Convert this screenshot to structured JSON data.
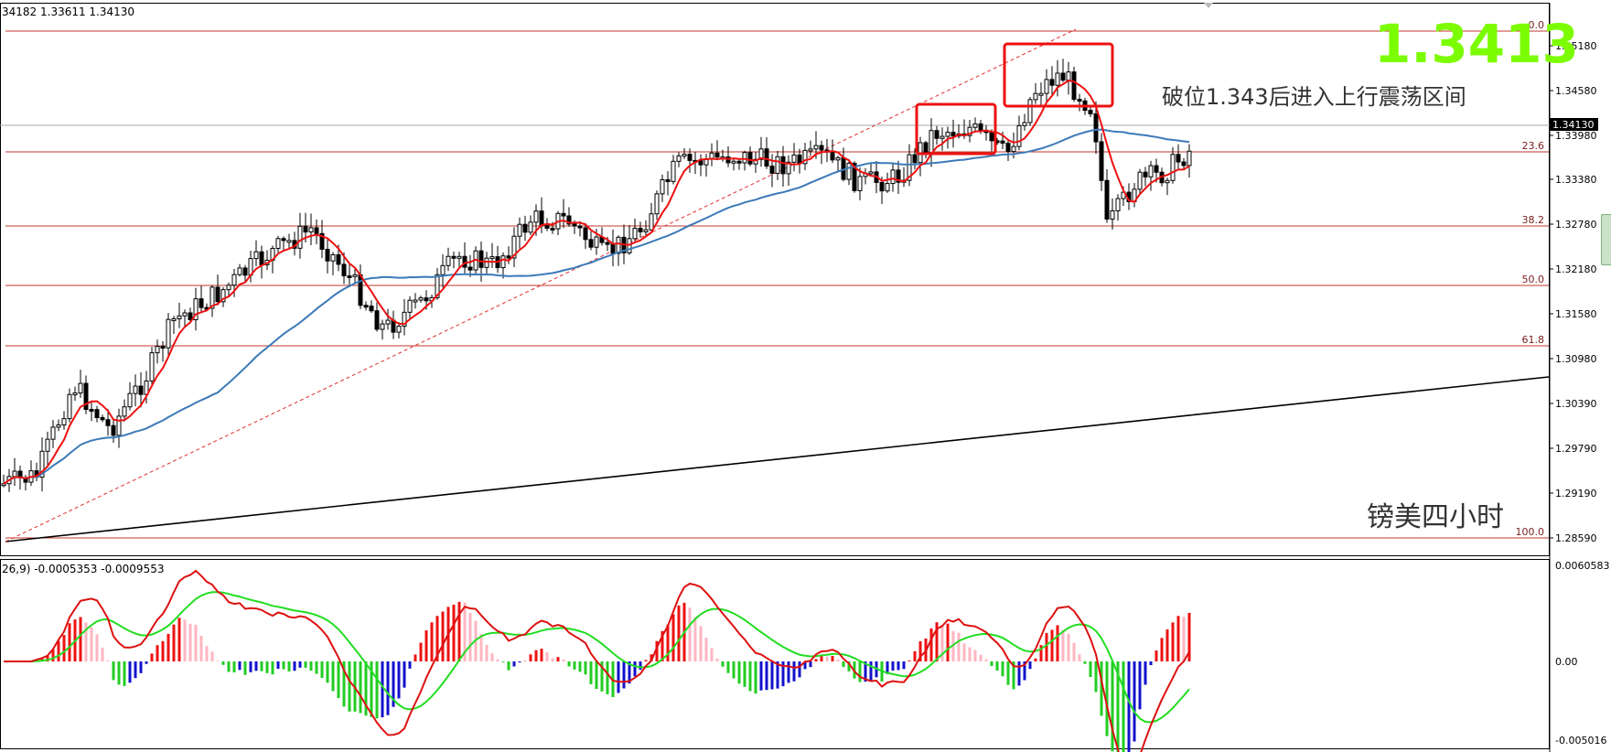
{
  "header": {
    "ohlc_text": "34182 1.33611 1.34130",
    "big_price": "1.3413",
    "note": "破位1.343后进入上行震荡区间",
    "subtitle": "镑美四小时"
  },
  "price_axis": {
    "labels": [
      "1.35180",
      "1.34580",
      "1.33980",
      "1.33380",
      "1.32780",
      "1.32180",
      "1.31580",
      "1.30980",
      "1.30390",
      "1.29790",
      "1.29190",
      "1.28590"
    ],
    "current": "1.34130"
  },
  "fibonacci": {
    "levels": [
      "0.0",
      "23.6",
      "38.2",
      "50.0",
      "61.8",
      "100.0"
    ]
  },
  "macd": {
    "header": "26,9) -0.0005353 -0.0009553",
    "labels": [
      "0.0060583",
      "0.00",
      "-0.005016"
    ]
  },
  "colors": {
    "fib_line": "#c0392b",
    "ma_fast": "#ee1111",
    "ma_slow": "#3d7ab8",
    "trend": "#000000",
    "big_price": "#7cfc00",
    "highlight_box": "#ee1111",
    "macd_signal": "#22dd22",
    "macd_line": "#dd1111",
    "hist_up": "#ee1111",
    "hist_up_weak": "#ffb6c1",
    "hist_down": "#22cc22",
    "hist_down_strong": "#1111cc"
  }
}
